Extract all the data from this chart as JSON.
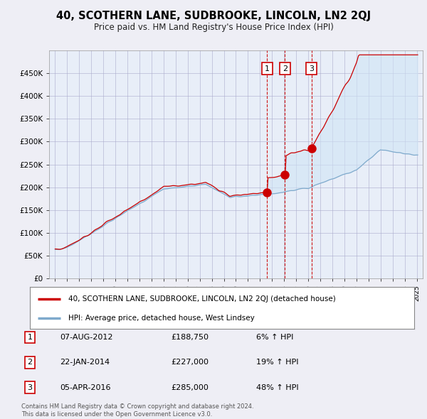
{
  "title": "40, SCOTHERN LANE, SUDBROOKE, LINCOLN, LN2 2QJ",
  "subtitle": "Price paid vs. HM Land Registry's House Price Index (HPI)",
  "red_label": "40, SCOTHERN LANE, SUDBROOKE, LINCOLN, LN2 2QJ (detached house)",
  "blue_label": "HPI: Average price, detached house, West Lindsey",
  "transactions": [
    {
      "num": 1,
      "date": "07-AUG-2012",
      "price": "£188,750",
      "pct": "6% ↑ HPI",
      "year": 2012.58
    },
    {
      "num": 2,
      "date": "22-JAN-2014",
      "price": "£227,000",
      "pct": "19% ↑ HPI",
      "year": 2014.06
    },
    {
      "num": 3,
      "date": "05-APR-2016",
      "price": "£285,000",
      "pct": "48% ↑ HPI",
      "year": 2016.26
    }
  ],
  "footer1": "Contains HM Land Registry data © Crown copyright and database right 2024.",
  "footer2": "This data is licensed under the Open Government Licence v3.0.",
  "ylim": [
    0,
    500000
  ],
  "xlim_start": 1994.5,
  "xlim_end": 2025.5,
  "background_color": "#eeeef5",
  "plot_bg": "#eeeef5",
  "red_color": "#cc0000",
  "blue_color": "#7faacc",
  "fill_color": "#d0e4f5"
}
